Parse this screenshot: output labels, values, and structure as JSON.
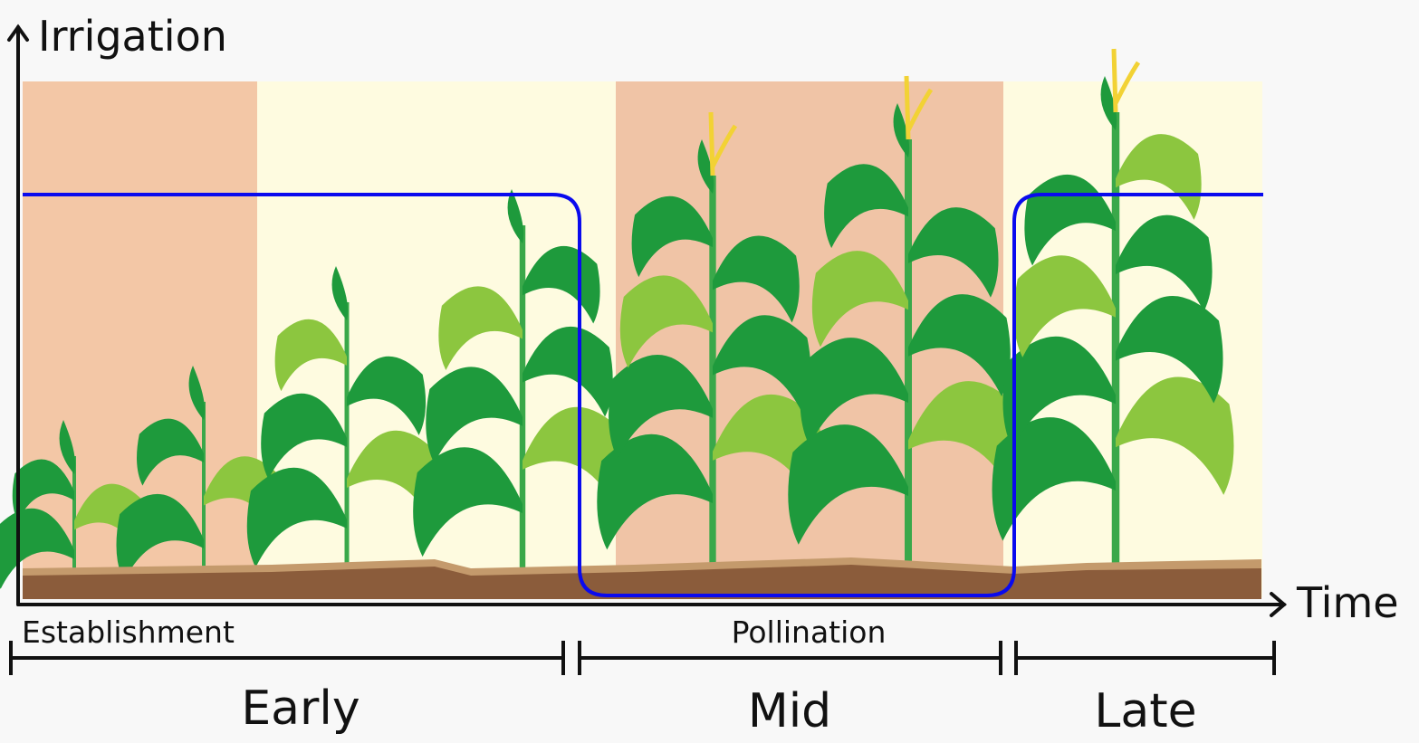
{
  "axes": {
    "y_label": "Irrigation",
    "x_label": "Time"
  },
  "stages": [
    "Establishment",
    "Pollination"
  ],
  "phases": [
    "Early",
    "Mid",
    "Late"
  ]
}
